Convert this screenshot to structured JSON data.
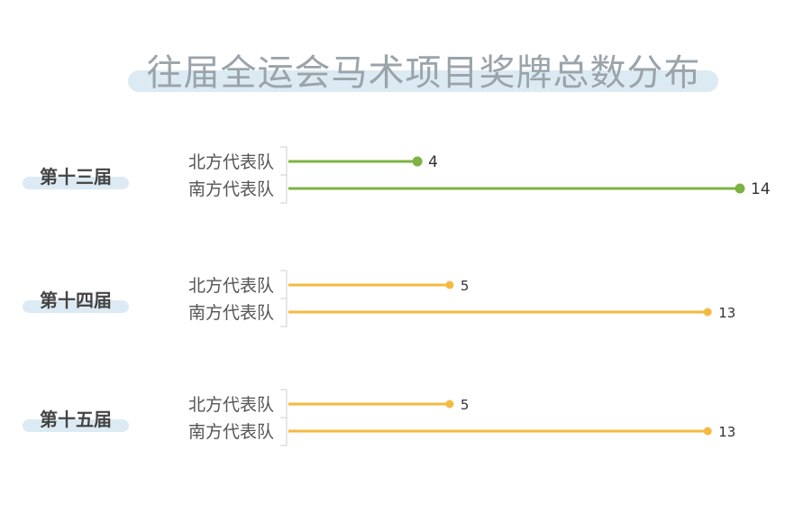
{
  "chart_data": {
    "type": "lollipop",
    "title": "往届全运会马术项目奖牌总数分布",
    "groups": [
      {
        "name": "第十三届",
        "color": "#7cb342",
        "items": [
          {
            "label": "北方代表队",
            "value": 4
          },
          {
            "label": "南方代表队",
            "value": 14
          }
        ]
      },
      {
        "name": "第十四届",
        "color": "#f5b942",
        "items": [
          {
            "label": "北方代表队",
            "value": 5
          },
          {
            "label": "南方代表队",
            "value": 13
          }
        ]
      },
      {
        "name": "第十五届",
        "color": "#f5b942",
        "items": [
          {
            "label": "北方代表队",
            "value": 5
          },
          {
            "label": "南方代表队",
            "value": 13
          }
        ]
      }
    ],
    "xlim": [
      0,
      14
    ],
    "grid": false,
    "colors": {
      "title": "#9aa4aa",
      "highlight": "#dcebf3",
      "label": "#555555",
      "group_label": "#444444"
    }
  }
}
